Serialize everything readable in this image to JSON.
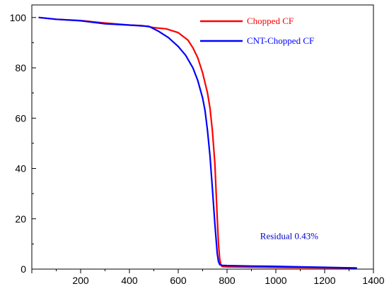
{
  "chart_data": {
    "type": "line",
    "title": "",
    "xlabel": "",
    "ylabel": "",
    "xlim": [
      0,
      1400
    ],
    "ylim": [
      0,
      105
    ],
    "xticks": [
      200,
      400,
      600,
      800,
      1000,
      1200,
      1400
    ],
    "yticks": [
      0,
      20,
      40,
      60,
      80,
      100
    ],
    "grid": false,
    "legend_position": "top-right",
    "series": [
      {
        "name": "Chopped CF",
        "color": "#ff0000",
        "x": [
          30,
          100,
          200,
          300,
          400,
          450,
          500,
          550,
          600,
          640,
          660,
          680,
          700,
          720,
          730,
          740,
          750,
          760,
          765,
          770,
          775,
          780,
          800,
          900,
          1000,
          1100,
          1200,
          1300,
          1330
        ],
        "y": [
          100,
          99.3,
          98.8,
          97.8,
          97,
          96.8,
          96,
          95.5,
          94,
          91,
          88,
          84,
          78,
          70,
          64,
          55,
          42,
          20,
          10,
          4,
          1.5,
          1,
          0.9,
          0.8,
          0.7,
          0.6,
          0.5,
          0.45,
          0.43
        ]
      },
      {
        "name": "CNT-Chopped CF",
        "color": "#0000ff",
        "x": [
          30,
          100,
          200,
          300,
          400,
          450,
          480,
          520,
          560,
          600,
          630,
          660,
          680,
          700,
          710,
          720,
          730,
          740,
          750,
          760,
          765,
          770,
          780,
          800,
          900,
          1000,
          1100,
          1200,
          1300,
          1330
        ],
        "y": [
          100,
          99.3,
          98.7,
          97.5,
          97,
          96.7,
          96.5,
          94.5,
          92,
          88.5,
          85,
          80,
          75,
          68,
          63,
          55,
          45,
          32,
          18,
          6,
          3,
          1.8,
          1.5,
          1.4,
          1.2,
          1.1,
          0.9,
          0.7,
          0.5,
          0.43
        ]
      }
    ],
    "annotations": [
      {
        "text": "Residual 0.43%",
        "x": 1055,
        "y": 12,
        "color": "#0000cc"
      }
    ]
  }
}
